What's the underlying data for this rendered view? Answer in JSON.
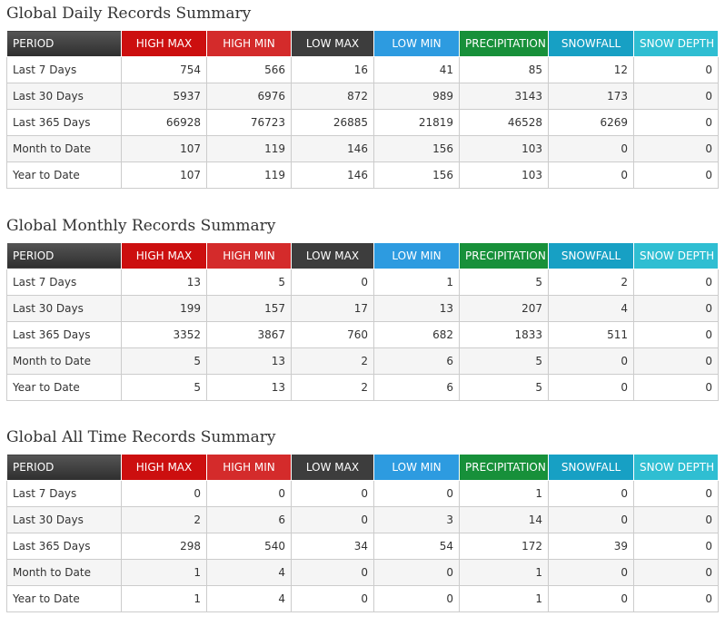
{
  "tables": [
    {
      "title": "Global Daily Records Summary",
      "columns": [
        "PERIOD",
        "HIGH MAX",
        "HIGH MIN",
        "LOW MAX",
        "LOW MIN",
        "PRECIPITATION",
        "SNOWFALL",
        "SNOW DEPTH"
      ],
      "rows": [
        [
          "Last 7 Days",
          754,
          566,
          16,
          41,
          85,
          12,
          0
        ],
        [
          "Last 30 Days",
          5937,
          6976,
          872,
          989,
          3143,
          173,
          0
        ],
        [
          "Last 365 Days",
          66928,
          76723,
          26885,
          21819,
          46528,
          6269,
          0
        ],
        [
          "Month to Date",
          107,
          119,
          146,
          156,
          103,
          0,
          0
        ],
        [
          "Year to Date",
          107,
          119,
          146,
          156,
          103,
          0,
          0
        ]
      ]
    },
    {
      "title": "Global Monthly Records Summary",
      "columns": [
        "PERIOD",
        "HIGH MAX",
        "HIGH MIN",
        "LOW MAX",
        "LOW MIN",
        "PRECIPITATION",
        "SNOWFALL",
        "SNOW DEPTH"
      ],
      "rows": [
        [
          "Last 7 Days",
          13,
          5,
          0,
          1,
          5,
          2,
          0
        ],
        [
          "Last 30 Days",
          199,
          157,
          17,
          13,
          207,
          4,
          0
        ],
        [
          "Last 365 Days",
          3352,
          3867,
          760,
          682,
          1833,
          511,
          0
        ],
        [
          "Month to Date",
          5,
          13,
          2,
          6,
          5,
          0,
          0
        ],
        [
          "Year to Date",
          5,
          13,
          2,
          6,
          5,
          0,
          0
        ]
      ]
    },
    {
      "title": "Global All Time Records Summary",
      "columns": [
        "PERIOD",
        "HIGH MAX",
        "HIGH MIN",
        "LOW MAX",
        "LOW MIN",
        "PRECIPITATION",
        "SNOWFALL",
        "SNOW DEPTH"
      ],
      "rows": [
        [
          "Last 7 Days",
          0,
          0,
          0,
          0,
          1,
          0,
          0
        ],
        [
          "Last 30 Days",
          2,
          6,
          0,
          3,
          14,
          0,
          0
        ],
        [
          "Last 365 Days",
          298,
          540,
          34,
          54,
          172,
          39,
          0
        ],
        [
          "Month to Date",
          1,
          4,
          0,
          0,
          1,
          0,
          0
        ],
        [
          "Year to Date",
          1,
          4,
          0,
          0,
          1,
          0,
          0
        ]
      ]
    }
  ]
}
